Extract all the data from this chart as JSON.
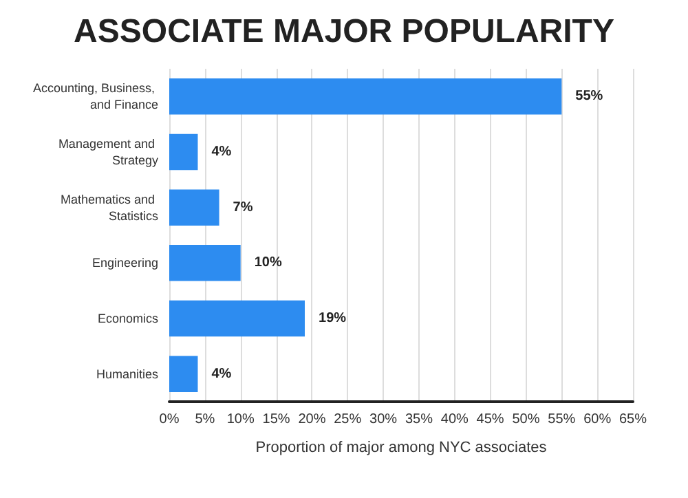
{
  "chart_data": {
    "type": "bar",
    "orientation": "horizontal",
    "title": "ASSOCIATE MAJOR POPULARITY",
    "xlabel": "Proportion of major among NYC associates",
    "categories": [
      "Accounting, Business, and Finance",
      "Management and Strategy",
      "Mathematics and Statistics",
      "Engineering",
      "Economics",
      "Humanities"
    ],
    "values": [
      55,
      4,
      7,
      10,
      19,
      4
    ],
    "value_labels": [
      "55%",
      "4%",
      "7%",
      "10%",
      "19%",
      "4%"
    ],
    "color": "#2d8cf0",
    "xlim": [
      0,
      65
    ],
    "xticks": [
      {
        "value": 0,
        "label": "0%"
      },
      {
        "value": 5,
        "label": "5%"
      },
      {
        "value": 10,
        "label": "10%"
      },
      {
        "value": 15,
        "label": "15%"
      },
      {
        "value": 20,
        "label": "20%"
      },
      {
        "value": 25,
        "label": "25%"
      },
      {
        "value": 30,
        "label": "30%"
      },
      {
        "value": 35,
        "label": "35%"
      },
      {
        "value": 40,
        "label": "40%"
      },
      {
        "value": 45,
        "label": "45%"
      },
      {
        "value": 50,
        "label": "50%"
      },
      {
        "value": 55,
        "label": "55%"
      },
      {
        "value": 60,
        "label": "60%"
      },
      {
        "value": 65,
        "label": "65%"
      }
    ],
    "grid": "x"
  }
}
